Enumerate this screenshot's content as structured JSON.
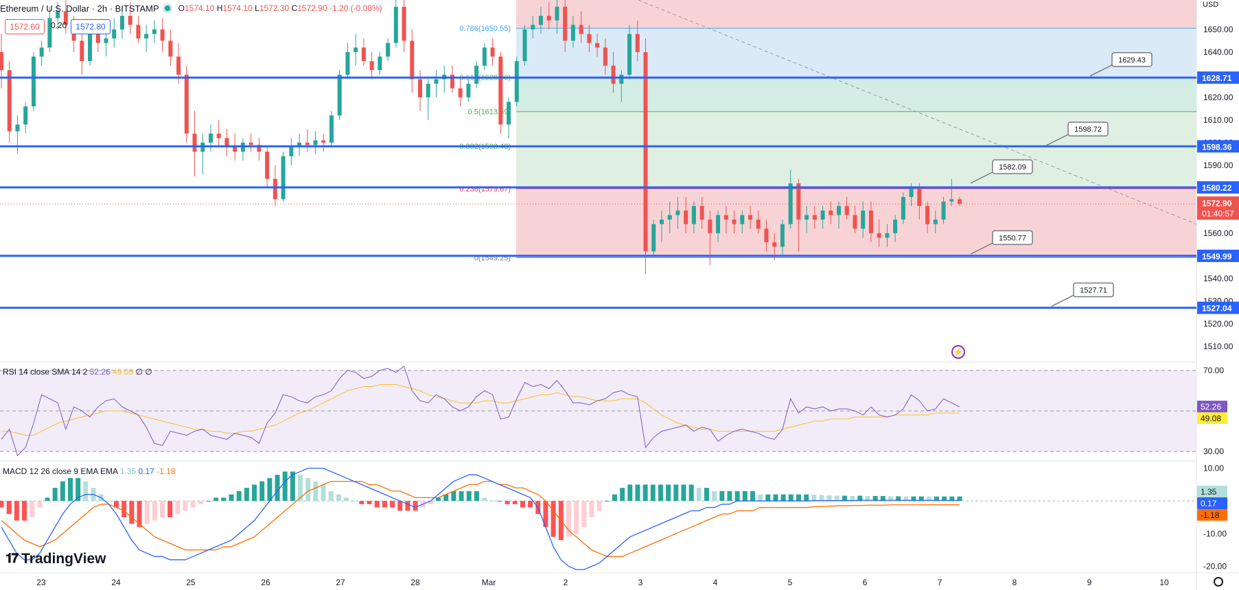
{
  "header": {
    "title": "Ethereum / U.S. Dollar · 2h · BITSTAMP",
    "open_label": "O",
    "open": "1574.10",
    "high_label": "H",
    "high": "1574.10",
    "low_label": "L",
    "low": "1572.30",
    "close_label": "C",
    "close": "1572.90",
    "change": "-1.20 (-0.08%)"
  },
  "trade": {
    "sell": "1572.60",
    "spread": "0.20",
    "buy": "1572.80"
  },
  "currency": "USD",
  "rsi_legend": {
    "label": "RSI 14 close SMA 14 2",
    "rsi": "52.26",
    "sma": "49.08",
    "extra": "∅ ∅"
  },
  "macd_legend": {
    "label": "MACD 12 26 close 9 EMA EMA",
    "hist": "1.35",
    "macd": "0.17",
    "signal": "-1.18"
  },
  "branding": "TradingView",
  "colors": {
    "up": "#26a69a",
    "down": "#ef5350",
    "level": "#2962ff",
    "rsi": "#7e57c2",
    "rsi_sma": "#fbc02d",
    "macd": "#2962ff",
    "signal": "#ff6d00",
    "fib_red": "#f8d3d6",
    "fib_blue": "#dbeaf7",
    "fib_green": "#dff0e3"
  },
  "chart_data": {
    "type": "candlestick",
    "x_ticks": [
      "23",
      "24",
      "25",
      "26",
      "27",
      "28",
      "Mar",
      "2",
      "3",
      "4",
      "5",
      "6",
      "7",
      "8",
      "9",
      "10"
    ],
    "price_axis": {
      "ticks": [
        1510,
        1520,
        1530,
        1540,
        1550,
        1560,
        1570,
        1580,
        1590,
        1600,
        1610,
        1620,
        1630,
        1640,
        1650
      ],
      "ylim": [
        1503,
        1663
      ]
    },
    "last_price": "1572.90",
    "countdown": "01:40:57",
    "horizontal_levels": [
      1628.71,
      1598.36,
      1580.22,
      1549.99,
      1527.04
    ],
    "level_labels": [
      "1628.71",
      "1598.36",
      "1580.22",
      "1549.99",
      "1527.04"
    ],
    "callouts": [
      "1629.43",
      "1598.72",
      "1582.09",
      "1550.77",
      "1527.71"
    ],
    "fib_levels": [
      {
        "label": "0.786(1650.55)",
        "price": 1650.55,
        "color": "#42a5f5"
      },
      {
        "label": "0.618(1628.90)",
        "price": 1628.9,
        "color": "#66bb6a"
      },
      {
        "label": "0.5(1613.69)",
        "price": 1613.69,
        "color": "#4caf50"
      },
      {
        "label": "0.382(1598.48)",
        "price": 1598.48,
        "color": "#4caf50"
      },
      {
        "label": "0.236(1579.67)",
        "price": 1579.67,
        "color": "#f23645"
      },
      {
        "label": "0(1549.25)",
        "price": 1549.25,
        "color": "#787b86"
      }
    ],
    "candles": [
      [
        1640,
        1648,
        1624,
        1632
      ],
      [
        1632,
        1636,
        1600,
        1605
      ],
      [
        1605,
        1612,
        1595,
        1608
      ],
      [
        1608,
        1618,
        1604,
        1616
      ],
      [
        1616,
        1640,
        1614,
        1638
      ],
      [
        1638,
        1645,
        1634,
        1642
      ],
      [
        1642,
        1660,
        1640,
        1655
      ],
      [
        1655,
        1662,
        1650,
        1658
      ],
      [
        1658,
        1664,
        1648,
        1652
      ],
      [
        1652,
        1656,
        1640,
        1645
      ],
      [
        1645,
        1648,
        1630,
        1636
      ],
      [
        1636,
        1650,
        1634,
        1648
      ],
      [
        1648,
        1652,
        1640,
        1644
      ],
      [
        1644,
        1650,
        1638,
        1646
      ],
      [
        1646,
        1655,
        1642,
        1650
      ],
      [
        1650,
        1660,
        1646,
        1656
      ],
      [
        1656,
        1662,
        1648,
        1652
      ],
      [
        1652,
        1656,
        1644,
        1646
      ],
      [
        1646,
        1652,
        1640,
        1648
      ],
      [
        1648,
        1654,
        1644,
        1650
      ],
      [
        1650,
        1655,
        1640,
        1645
      ],
      [
        1645,
        1650,
        1634,
        1638
      ],
      [
        1638,
        1644,
        1626,
        1630
      ],
      [
        1630,
        1634,
        1600,
        1604
      ],
      [
        1604,
        1614,
        1585,
        1596
      ],
      [
        1596,
        1604,
        1586,
        1600
      ],
      [
        1600,
        1608,
        1596,
        1604
      ],
      [
        1604,
        1610,
        1598,
        1602
      ],
      [
        1602,
        1606,
        1594,
        1598
      ],
      [
        1598,
        1604,
        1592,
        1596
      ],
      [
        1596,
        1602,
        1592,
        1600
      ],
      [
        1600,
        1604,
        1596,
        1599
      ],
      [
        1599,
        1602,
        1592,
        1596
      ],
      [
        1596,
        1598,
        1580,
        1584
      ],
      [
        1584,
        1590,
        1572,
        1575
      ],
      [
        1575,
        1596,
        1574,
        1594
      ],
      [
        1594,
        1602,
        1590,
        1598
      ],
      [
        1598,
        1604,
        1594,
        1600
      ],
      [
        1600,
        1606,
        1596,
        1599
      ],
      [
        1599,
        1605,
        1595,
        1601
      ],
      [
        1601,
        1604,
        1596,
        1600
      ],
      [
        1600,
        1614,
        1598,
        1612
      ],
      [
        1612,
        1632,
        1610,
        1630
      ],
      [
        1630,
        1644,
        1628,
        1640
      ],
      [
        1640,
        1648,
        1634,
        1642
      ],
      [
        1642,
        1646,
        1634,
        1636
      ],
      [
        1636,
        1640,
        1628,
        1632
      ],
      [
        1632,
        1640,
        1630,
        1638
      ],
      [
        1638,
        1646,
        1636,
        1644
      ],
      [
        1644,
        1664,
        1642,
        1660
      ],
      [
        1660,
        1666,
        1640,
        1645
      ],
      [
        1645,
        1650,
        1622,
        1628
      ],
      [
        1628,
        1632,
        1614,
        1620
      ],
      [
        1620,
        1628,
        1610,
        1626
      ],
      [
        1626,
        1632,
        1620,
        1628
      ],
      [
        1628,
        1634,
        1622,
        1630
      ],
      [
        1630,
        1634,
        1622,
        1624
      ],
      [
        1624,
        1628,
        1616,
        1620
      ],
      [
        1620,
        1628,
        1618,
        1626
      ],
      [
        1626,
        1636,
        1624,
        1634
      ],
      [
        1634,
        1644,
        1632,
        1642
      ],
      [
        1642,
        1646,
        1634,
        1638
      ],
      [
        1638,
        1640,
        1604,
        1608
      ],
      [
        1608,
        1620,
        1602,
        1618
      ],
      [
        1618,
        1638,
        1616,
        1636
      ],
      [
        1636,
        1652,
        1634,
        1650
      ],
      [
        1650,
        1656,
        1646,
        1652
      ],
      [
        1652,
        1660,
        1648,
        1656
      ],
      [
        1656,
        1662,
        1650,
        1654
      ],
      [
        1654,
        1664,
        1648,
        1660
      ],
      [
        1660,
        1664,
        1640,
        1645
      ],
      [
        1645,
        1656,
        1642,
        1652
      ],
      [
        1652,
        1658,
        1644,
        1648
      ],
      [
        1648,
        1652,
        1640,
        1644
      ],
      [
        1644,
        1648,
        1638,
        1642
      ],
      [
        1642,
        1646,
        1630,
        1634
      ],
      [
        1634,
        1640,
        1622,
        1626
      ],
      [
        1626,
        1632,
        1618,
        1630
      ],
      [
        1630,
        1652,
        1628,
        1648
      ],
      [
        1648,
        1654,
        1636,
        1640
      ],
      [
        1640,
        1646,
        1542,
        1552
      ],
      [
        1552,
        1566,
        1550,
        1564
      ],
      [
        1564,
        1570,
        1556,
        1566
      ],
      [
        1566,
        1574,
        1560,
        1568
      ],
      [
        1568,
        1576,
        1562,
        1570
      ],
      [
        1570,
        1576,
        1560,
        1564
      ],
      [
        1564,
        1574,
        1560,
        1572
      ],
      [
        1572,
        1576,
        1562,
        1566
      ],
      [
        1566,
        1570,
        1546,
        1560
      ],
      [
        1560,
        1570,
        1556,
        1568
      ],
      [
        1568,
        1572,
        1560,
        1566
      ],
      [
        1566,
        1570,
        1560,
        1564
      ],
      [
        1564,
        1570,
        1560,
        1568
      ],
      [
        1568,
        1572,
        1562,
        1566
      ],
      [
        1566,
        1570,
        1560,
        1562
      ],
      [
        1562,
        1566,
        1552,
        1556
      ],
      [
        1556,
        1560,
        1548,
        1554
      ],
      [
        1554,
        1566,
        1550,
        1564
      ],
      [
        1564,
        1588,
        1562,
        1582
      ],
      [
        1582,
        1584,
        1552,
        1566
      ],
      [
        1566,
        1572,
        1560,
        1568
      ],
      [
        1568,
        1572,
        1562,
        1566
      ],
      [
        1566,
        1572,
        1562,
        1570
      ],
      [
        1570,
        1574,
        1564,
        1568
      ],
      [
        1568,
        1574,
        1562,
        1572
      ],
      [
        1572,
        1576,
        1566,
        1568
      ],
      [
        1568,
        1572,
        1560,
        1562
      ],
      [
        1562,
        1574,
        1558,
        1570
      ],
      [
        1570,
        1574,
        1556,
        1560
      ],
      [
        1560,
        1566,
        1554,
        1558
      ],
      [
        1558,
        1564,
        1554,
        1560
      ],
      [
        1560,
        1568,
        1556,
        1566
      ],
      [
        1566,
        1578,
        1564,
        1576
      ],
      [
        1576,
        1582,
        1572,
        1580
      ],
      [
        1580,
        1582,
        1566,
        1572
      ],
      [
        1572,
        1574,
        1560,
        1564
      ],
      [
        1564,
        1570,
        1560,
        1566
      ],
      [
        1566,
        1576,
        1564,
        1574
      ],
      [
        1574,
        1584,
        1572,
        1575
      ],
      [
        1575,
        1576,
        1572,
        1573
      ]
    ],
    "rsi_axis": {
      "ticks": [
        30,
        70
      ],
      "ylim": [
        26,
        74
      ]
    },
    "rsi": [
      36,
      41,
      28,
      32,
      44,
      58,
      56,
      54,
      41,
      52,
      50,
      47,
      52,
      55,
      56,
      52,
      50,
      48,
      42,
      34,
      33,
      40,
      39,
      38,
      40,
      41,
      38,
      37,
      36,
      39,
      38,
      37,
      34,
      44,
      49,
      58,
      57,
      55,
      54,
      57,
      58,
      60,
      66,
      70,
      69,
      66,
      67,
      70,
      71,
      69,
      72,
      60,
      55,
      54,
      58,
      56,
      52,
      50,
      52,
      57,
      60,
      58,
      46,
      47,
      56,
      64,
      62,
      63,
      61,
      65,
      60,
      54,
      54,
      53,
      55,
      56,
      59,
      60,
      58,
      57,
      32,
      37,
      40,
      41,
      42,
      43,
      40,
      42,
      41,
      35,
      38,
      40,
      41,
      40,
      39,
      37,
      36,
      41,
      56,
      49,
      52,
      51,
      52,
      50,
      51,
      51,
      50,
      48,
      52,
      48,
      47,
      48,
      51,
      58,
      55,
      50,
      51,
      56,
      54,
      52
    ],
    "rsi_sma": [
      40,
      40,
      39,
      38,
      38,
      40,
      42,
      44,
      45,
      46,
      47,
      48,
      49,
      50,
      50,
      50,
      49,
      48,
      47,
      46,
      45,
      44,
      43,
      42,
      41,
      41,
      40,
      40,
      39,
      39,
      40,
      40,
      41,
      42,
      43,
      45,
      47,
      49,
      50,
      52,
      54,
      56,
      58,
      60,
      61,
      62,
      62,
      63,
      63,
      63,
      62,
      61,
      60,
      58,
      57,
      56,
      55,
      54,
      54,
      54,
      55,
      55,
      54,
      54,
      55,
      56,
      57,
      58,
      58,
      59,
      58,
      57,
      57,
      56,
      55,
      55,
      55,
      56,
      56,
      56,
      54,
      51,
      48,
      46,
      44,
      43,
      42,
      41,
      41,
      40,
      40,
      40,
      40,
      40,
      40,
      40,
      40,
      41,
      42,
      43,
      44,
      45,
      45,
      46,
      46,
      46,
      47,
      47,
      47,
      47,
      47,
      48,
      48,
      48,
      48,
      48,
      49,
      49,
      49,
      49
    ],
    "macd_axis": {
      "ticks": [
        -20,
        -10,
        10
      ],
      "ylim": [
        -22,
        12
      ]
    },
    "macd": [
      -8,
      -12,
      -16,
      -18,
      -18,
      -16,
      -12,
      -8,
      -4,
      -1,
      1,
      2,
      2,
      1,
      -1,
      -4,
      -8,
      -12,
      -15,
      -16,
      -17,
      -17,
      -18,
      -18,
      -18,
      -17,
      -16,
      -15,
      -14,
      -13,
      -12,
      -10,
      -8,
      -6,
      -3,
      0,
      3,
      6,
      8,
      9,
      10,
      10,
      10,
      9,
      8,
      7,
      6,
      5,
      4,
      3,
      2,
      1,
      0,
      -1,
      -2,
      -1,
      0,
      2,
      4,
      6,
      7,
      8,
      8,
      7,
      6,
      5,
      4,
      3,
      2,
      1,
      -2,
      -8,
      -14,
      -18,
      -20,
      -21,
      -21,
      -20,
      -19,
      -17,
      -15,
      -13,
      -11,
      -10,
      -9,
      -8,
      -7,
      -6,
      -5,
      -4,
      -3,
      -3,
      -2,
      -2,
      -1,
      -1,
      0,
      0,
      0,
      0,
      0,
      0,
      0,
      0,
      0,
      0,
      0.1,
      0.1,
      0.1,
      0.1,
      0.1,
      0.1,
      0.2,
      0.2,
      0.2,
      0.2,
      0.2,
      0.2,
      0.17,
      0.17,
      0.17,
      0.17,
      0.17,
      0.17,
      0.17,
      0.17
    ],
    "macd_signal": [
      -6,
      -8,
      -10,
      -12,
      -13,
      -14,
      -13,
      -12,
      -10,
      -8,
      -6,
      -4,
      -2,
      -1,
      -1,
      -2,
      -3,
      -5,
      -7,
      -9,
      -11,
      -12,
      -13,
      -14,
      -15,
      -15,
      -15,
      -15,
      -15,
      -14,
      -14,
      -13,
      -12,
      -11,
      -9,
      -7,
      -5,
      -3,
      -1,
      1,
      3,
      4,
      5,
      6,
      6,
      6,
      6,
      6,
      5,
      5,
      4,
      3,
      3,
      2,
      1,
      1,
      1,
      1,
      2,
      3,
      4,
      5,
      5,
      6,
      6,
      5,
      5,
      4,
      4,
      3,
      2,
      0,
      -3,
      -6,
      -9,
      -11,
      -13,
      -15,
      -16,
      -17,
      -17,
      -17,
      -16,
      -15,
      -14,
      -13,
      -12,
      -11,
      -10,
      -9,
      -8,
      -7,
      -6,
      -5,
      -4,
      -4,
      -3,
      -3,
      -3,
      -2,
      -2,
      -2,
      -2,
      -2,
      -2,
      -2,
      -1.8,
      -1.7,
      -1.6,
      -1.5,
      -1.5,
      -1.4,
      -1.4,
      -1.3,
      -1.3,
      -1.3,
      -1.2,
      -1.2,
      -1.2,
      -1.2,
      -1.2,
      -1.18,
      -1.18,
      -1.18,
      -1.18,
      -1.18
    ]
  }
}
